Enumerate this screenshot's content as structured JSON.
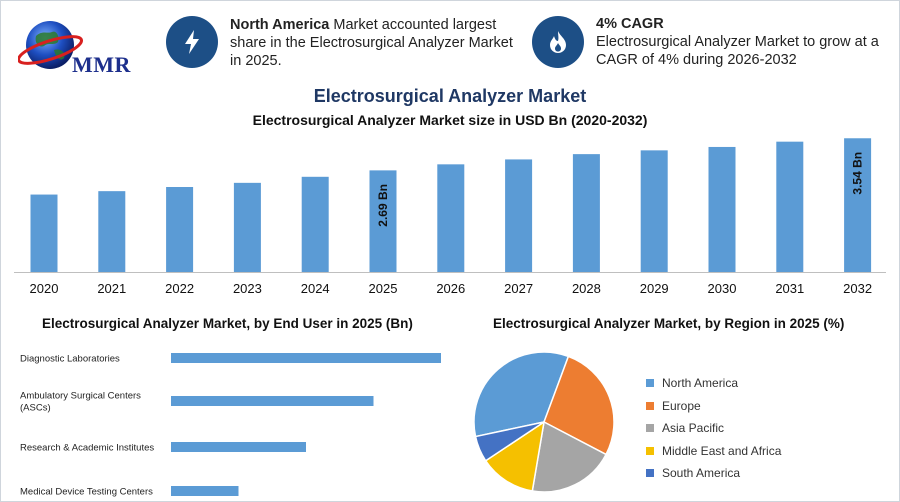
{
  "logo": {
    "text": "MMR"
  },
  "info_left": {
    "icon": "lightning-icon",
    "highlight": "North America",
    "text": " Market accounted largest share in the Electrosurgical Analyzer Market in 2025."
  },
  "info_right": {
    "icon": "flame-icon",
    "title": "4% CAGR",
    "text": "Electrosurgical Analyzer Market to grow at a CAGR of 4% during 2026-2032"
  },
  "header": {
    "title": "Electrosurgical Analyzer Market",
    "subtitle": "Electrosurgical Analyzer Market size in USD Bn (2020-2032)"
  },
  "end_user_title": "Electrosurgical Analyzer Market, by End User in 2025 (Bn)",
  "region_title": "Electrosurgical Analyzer Market, by Region in 2025 (%)",
  "colors": {
    "bar": "#5b9bd5",
    "dark_blue": "#1d4f86",
    "title_blue": "#1f3864"
  },
  "chart_data": [
    {
      "type": "bar",
      "categories": [
        "2020",
        "2021",
        "2022",
        "2023",
        "2024",
        "2025",
        "2026",
        "2027",
        "2028",
        "2029",
        "2030",
        "2031",
        "2032"
      ],
      "values": [
        2.05,
        2.14,
        2.25,
        2.36,
        2.52,
        2.69,
        2.85,
        2.98,
        3.12,
        3.22,
        3.31,
        3.45,
        3.54
      ],
      "data_labels": {
        "2025": "2.69 Bn",
        "2032": "3.54 Bn"
      },
      "ylim": [
        0,
        3.6
      ],
      "grid": false
    },
    {
      "type": "bar",
      "orientation": "horizontal",
      "categories": [
        [
          "Diagnostic Laboratories"
        ],
        [
          "Ambulatory Surgical Centers",
          "(ASCs)"
        ],
        [
          "Research & Academic Institutes"
        ],
        [
          "Medical Device Testing Centers"
        ]
      ],
      "values": [
        1.0,
        0.75,
        0.5,
        0.25
      ],
      "xlim": [
        0,
        1.0
      ],
      "grid": false
    },
    {
      "type": "pie",
      "labels": [
        "North America",
        "Europe",
        "Asia Pacific",
        "Middle East and Africa",
        "South America"
      ],
      "values": [
        34,
        27,
        20,
        13,
        6
      ],
      "colors": [
        "#5b9bd5",
        "#ed7d31",
        "#a5a5a5",
        "#f5c000",
        "#4472c4"
      ],
      "legend": "right"
    }
  ]
}
